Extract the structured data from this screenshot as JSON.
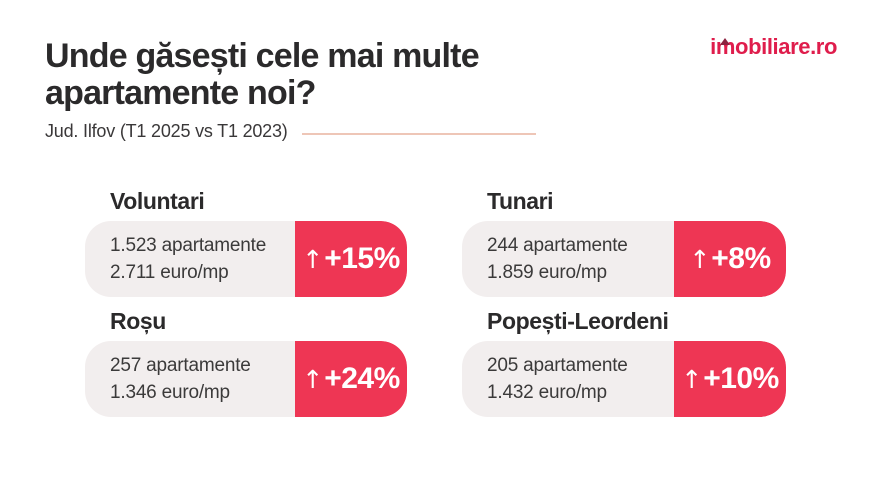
{
  "page": {
    "background": "#ffffff",
    "accent_red": "#ee3654",
    "card_gray": "#f2eeee",
    "text_dark": "#2b2a2b",
    "divider_color": "#eec6b7"
  },
  "header": {
    "title_line1": "Unde găsești cele mai multe",
    "title_line2": "apartamente noi?",
    "subtitle": "Jud. Ilfov (T1 2025 vs T1 2023)"
  },
  "logo": {
    "part1": "i",
    "part2": "m",
    "part3": "obiliare.ro",
    "color": "#df1d4c",
    "roof_color": "#8c2240"
  },
  "cards": [
    {
      "name": "Voluntari",
      "apartments": "1.523 apartamente",
      "price": "2.711 euro/mp",
      "arrow": "↑",
      "change": "+15%"
    },
    {
      "name": "Tunari",
      "apartments": "244 apartamente",
      "price": "1.859 euro/mp",
      "arrow": "↑",
      "change": "+8%"
    },
    {
      "name": "Roșu",
      "apartments": "257 apartamente",
      "price": "1.346 euro/mp",
      "arrow": "↑",
      "change": "+24%"
    },
    {
      "name": "Popești-Leordeni",
      "apartments": "205 apartamente",
      "price": "1.432 euro/mp",
      "arrow": "↑",
      "change": "+10%"
    }
  ],
  "chart_data": {
    "type": "table",
    "title": "Unde găsești cele mai multe apartamente noi?",
    "subtitle": "Jud. Ilfov (T1 2025 vs T1 2023)",
    "categories": [
      "Voluntari",
      "Tunari",
      "Roșu",
      "Popești-Leordeni"
    ],
    "series": [
      {
        "name": "apartamente noi",
        "values": [
          1523,
          244,
          257,
          205
        ]
      },
      {
        "name": "pret euro/mp",
        "values": [
          2711,
          1859,
          1346,
          1432
        ]
      },
      {
        "name": "crestere %",
        "values": [
          15,
          8,
          24,
          10
        ]
      }
    ]
  }
}
